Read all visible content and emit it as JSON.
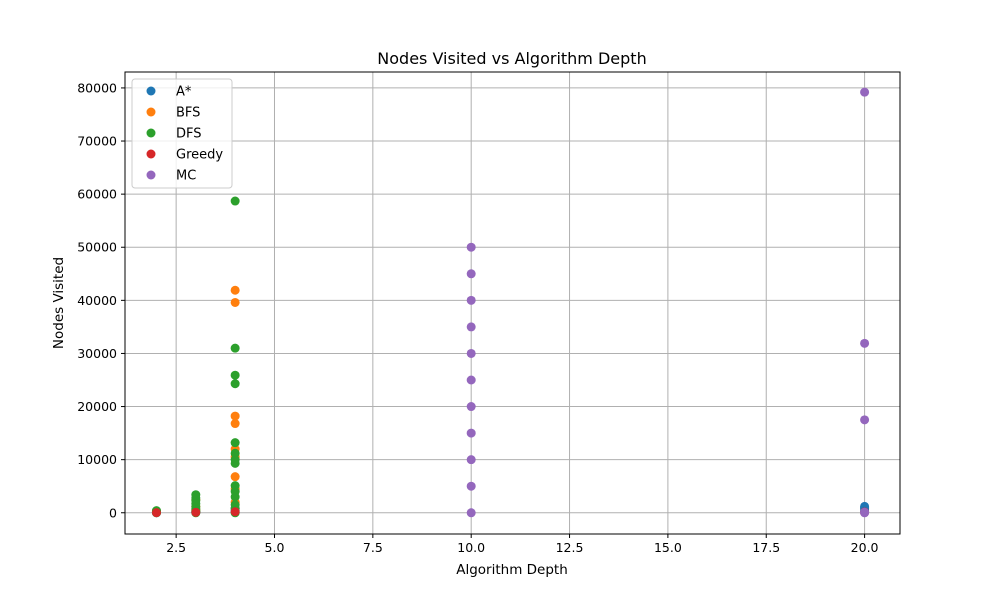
{
  "chart_data": {
    "type": "scatter",
    "title": "Nodes Visited vs Algorithm Depth",
    "xlabel": "Algorithm Depth",
    "ylabel": "Nodes Visited",
    "xlim": [
      1.2,
      20.9
    ],
    "ylim": [
      -4000,
      83000
    ],
    "xticks": [
      2.5,
      5.0,
      7.5,
      10.0,
      12.5,
      15.0,
      17.5,
      20.0
    ],
    "xtick_labels": [
      "2.5",
      "5.0",
      "7.5",
      "10.0",
      "12.5",
      "15.0",
      "17.5",
      "20.0"
    ],
    "yticks": [
      0,
      10000,
      20000,
      30000,
      40000,
      50000,
      60000,
      70000,
      80000
    ],
    "ytick_labels": [
      "0",
      "10000",
      "20000",
      "30000",
      "40000",
      "50000",
      "60000",
      "70000",
      "80000"
    ],
    "grid": true,
    "legend_position": "top-left",
    "series": [
      {
        "name": "A*",
        "color": "#1f77b4",
        "points": [
          [
            2,
            10
          ],
          [
            2,
            30
          ],
          [
            2,
            60
          ],
          [
            3,
            50
          ],
          [
            3,
            120
          ],
          [
            3,
            250
          ],
          [
            4,
            150
          ],
          [
            4,
            400
          ],
          [
            4,
            800
          ],
          [
            20,
            300
          ],
          [
            20,
            700
          ],
          [
            20,
            1000
          ],
          [
            20,
            1200
          ]
        ]
      },
      {
        "name": "BFS",
        "color": "#ff7f0e",
        "points": [
          [
            2,
            50
          ],
          [
            2,
            150
          ],
          [
            2,
            300
          ],
          [
            3,
            500
          ],
          [
            3,
            1200
          ],
          [
            3,
            2500
          ],
          [
            4,
            2000
          ],
          [
            4,
            4500
          ],
          [
            4,
            6800
          ],
          [
            4,
            10500
          ],
          [
            4,
            12000
          ],
          [
            4,
            16800
          ],
          [
            4,
            18200
          ],
          [
            4,
            39600
          ],
          [
            4,
            41900
          ]
        ]
      },
      {
        "name": "DFS",
        "color": "#2ca02c",
        "points": [
          [
            2,
            0
          ],
          [
            2,
            100
          ],
          [
            2,
            200
          ],
          [
            2,
            300
          ],
          [
            2,
            400
          ],
          [
            3,
            0
          ],
          [
            3,
            300
          ],
          [
            3,
            700
          ],
          [
            3,
            1200
          ],
          [
            3,
            1700
          ],
          [
            3,
            2300
          ],
          [
            3,
            2800
          ],
          [
            3,
            3400
          ],
          [
            4,
            0
          ],
          [
            4,
            800
          ],
          [
            4,
            1500
          ],
          [
            4,
            3000
          ],
          [
            4,
            4000
          ],
          [
            4,
            5100
          ],
          [
            4,
            9300
          ],
          [
            4,
            10000
          ],
          [
            4,
            11200
          ],
          [
            4,
            13200
          ],
          [
            4,
            24300
          ],
          [
            4,
            25900
          ],
          [
            4,
            31000
          ],
          [
            4,
            58700
          ]
        ]
      },
      {
        "name": "Greedy",
        "color": "#d62728",
        "points": [
          [
            2,
            20
          ],
          [
            3,
            80
          ],
          [
            4,
            200
          ],
          [
            20,
            50
          ],
          [
            20,
            150
          ]
        ]
      },
      {
        "name": "MC",
        "color": "#9467bd",
        "points": [
          [
            10,
            0
          ],
          [
            10,
            5000
          ],
          [
            10,
            10000
          ],
          [
            10,
            15000
          ],
          [
            10,
            20000
          ],
          [
            10,
            25000
          ],
          [
            10,
            30000
          ],
          [
            10,
            35000
          ],
          [
            10,
            40000
          ],
          [
            10,
            45000
          ],
          [
            10,
            50000
          ],
          [
            20,
            0
          ],
          [
            20,
            100
          ],
          [
            20,
            17500
          ],
          [
            20,
            31900
          ],
          [
            20,
            79200
          ]
        ]
      }
    ]
  }
}
